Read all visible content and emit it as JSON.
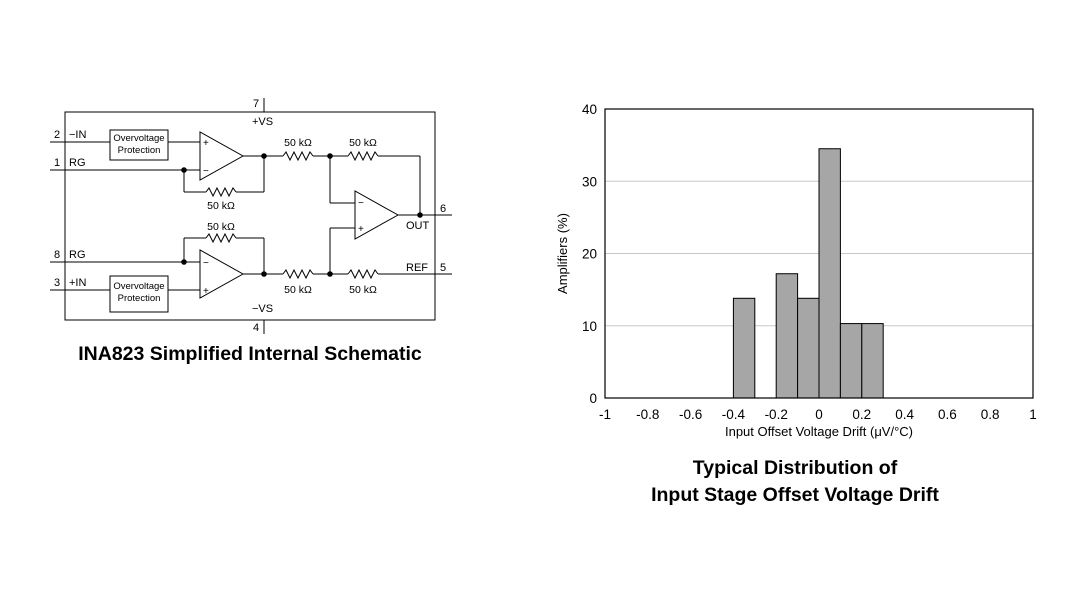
{
  "schematic": {
    "title": "INA823 Simplified Internal Schematic",
    "pins": {
      "neg_in": {
        "num": "2",
        "label": "−IN"
      },
      "rg_top": {
        "num": "1",
        "label": "RG"
      },
      "rg_bot": {
        "num": "8",
        "label": "RG"
      },
      "pos_in": {
        "num": "3",
        "label": "+IN"
      },
      "vs_pos": {
        "num": "7",
        "label": "+VS"
      },
      "vs_neg": {
        "num": "4",
        "label": "−VS"
      },
      "out": {
        "num": "6",
        "label": "OUT"
      },
      "ref": {
        "num": "5",
        "label": "REF"
      }
    },
    "protection_label_line1": "Overvoltage",
    "protection_label_line2": "Protection",
    "resistor_label": "50 kΩ"
  },
  "chart_data": {
    "type": "bar",
    "title_line1": "Typical Distribution of",
    "title_line2": "Input Stage Offset Voltage Drift",
    "xlabel": "Input Offset Voltage Drift (μV/°C)",
    "ylabel": "Amplifiers (%)",
    "xlim": [
      -1,
      1
    ],
    "ylim": [
      0,
      40
    ],
    "bin_width": 0.1,
    "xticks": [
      "-1",
      "-0.8",
      "-0.6",
      "-0.4",
      "-0.2",
      "0",
      "0.2",
      "0.4",
      "0.6",
      "0.8",
      "1"
    ],
    "yticks": [
      "0",
      "10",
      "20",
      "30",
      "40"
    ],
    "grid": true,
    "bar_color": "#a6a6a6",
    "bins": [
      {
        "start": -0.4,
        "value": 13.8
      },
      {
        "start": -0.2,
        "value": 17.2
      },
      {
        "start": -0.1,
        "value": 13.8
      },
      {
        "start": 0.0,
        "value": 34.5
      },
      {
        "start": 0.1,
        "value": 10.3
      },
      {
        "start": 0.2,
        "value": 10.3
      }
    ]
  }
}
